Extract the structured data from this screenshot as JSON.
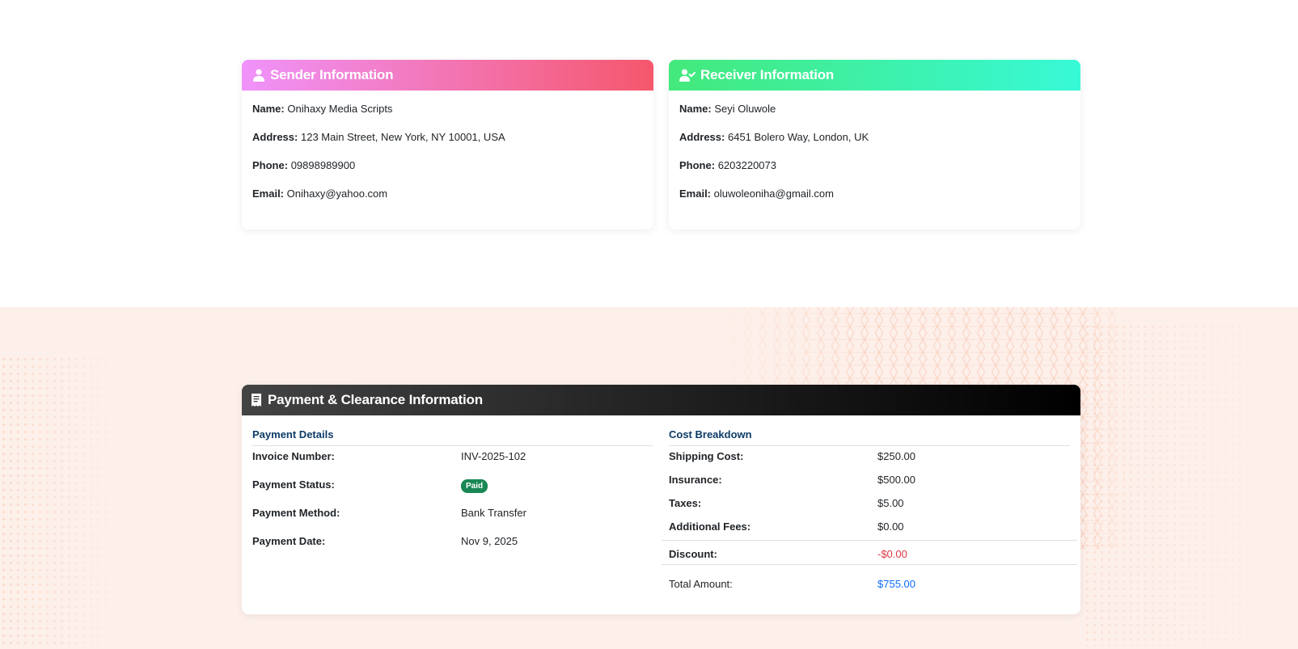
{
  "sender": {
    "title": "Sender Information",
    "fields": [
      {
        "label": "Name:",
        "value": "Onihaxy Media Scripts"
      },
      {
        "label": "Address:",
        "value": "123 Main Street, New York, NY 10001, USA"
      },
      {
        "label": "Phone:",
        "value": "09898989900"
      },
      {
        "label": "Email:",
        "value": "Onihaxy@yahoo.com"
      }
    ]
  },
  "receiver": {
    "title": "Receiver Information",
    "fields": [
      {
        "label": "Name:",
        "value": "Seyi Oluwole"
      },
      {
        "label": "Address:",
        "value": "6451 Bolero Way, London, UK"
      },
      {
        "label": "Phone:",
        "value": "6203220073"
      },
      {
        "label": "Email:",
        "value": "oluwoleoniha@gmail.com"
      }
    ]
  },
  "payment": {
    "title": "Payment & Clearance Information",
    "details_title": "Payment Details",
    "details": [
      {
        "label": "Invoice Number:",
        "value": "INV-2025-102"
      },
      {
        "label": "Payment Status:",
        "value": "Paid"
      },
      {
        "label": "Payment Method:",
        "value": "Bank Transfer"
      },
      {
        "label": "Payment Date:",
        "value": "Nov 9, 2025"
      }
    ],
    "breakdown_title": "Cost Breakdown",
    "breakdown": [
      {
        "label": "Shipping Cost:",
        "value": "$250.00"
      },
      {
        "label": "Insurance:",
        "value": "$500.00"
      },
      {
        "label": "Taxes:",
        "value": "$5.00"
      },
      {
        "label": "Additional Fees:",
        "value": "$0.00"
      }
    ],
    "discount": {
      "label": "Discount:",
      "value": "-$0.00"
    },
    "total": {
      "label": "Total Amount:",
      "value": "$755.00"
    }
  },
  "colors": {
    "sender_gradient": [
      "#f093fb",
      "#f5576c"
    ],
    "receiver_gradient": [
      "#43e97b",
      "#38f9d7"
    ],
    "payment_gradient": [
      "#434343",
      "#000000"
    ],
    "paid_badge": "#198754",
    "discount": "#dc3545",
    "total": "#0d6efd",
    "section_title": "#0d3b66",
    "bottom_bg": "#fdf0ea"
  },
  "icons": {
    "sender": "user-icon",
    "receiver": "user-check-icon",
    "payment": "receipt-icon"
  }
}
